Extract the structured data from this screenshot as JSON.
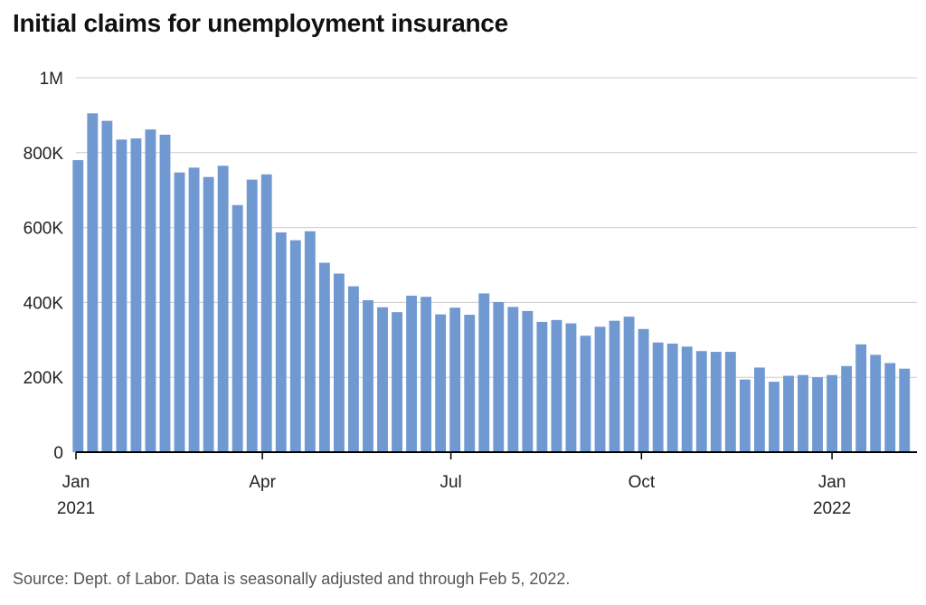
{
  "header": {
    "title": "Initial claims for unemployment insurance"
  },
  "footer": {
    "source": "Source: Dept. of Labor. Data is seasonally adjusted and through Feb 5, 2022."
  },
  "colors": {
    "bar": "#7199d1",
    "grid": "#cccccc",
    "axis": "#000000",
    "text": "#222222"
  },
  "chart_data": {
    "type": "bar",
    "title": "Initial claims for unemployment insurance",
    "xlabel": "",
    "ylabel": "",
    "ylim": [
      0,
      1000000
    ],
    "grid": true,
    "y_ticks": [
      {
        "value": 0,
        "label": "0"
      },
      {
        "value": 200000,
        "label": "200K"
      },
      {
        "value": 400000,
        "label": "400K"
      },
      {
        "value": 600000,
        "label": "600K"
      },
      {
        "value": 800000,
        "label": "800K"
      },
      {
        "value": 1000000,
        "label": "1M"
      }
    ],
    "x_ticks": [
      {
        "date": "2021-01-01",
        "label": "Jan",
        "sublabel": "2021"
      },
      {
        "date": "2021-04-01",
        "label": "Apr",
        "sublabel": ""
      },
      {
        "date": "2021-07-01",
        "label": "Jul",
        "sublabel": ""
      },
      {
        "date": "2021-10-01",
        "label": "Oct",
        "sublabel": ""
      },
      {
        "date": "2022-01-01",
        "label": "Jan",
        "sublabel": "2022"
      }
    ],
    "x_range": [
      "2021-01-01",
      "2022-02-11"
    ],
    "categories": [
      "2021-01-02",
      "2021-01-09",
      "2021-01-16",
      "2021-01-23",
      "2021-01-30",
      "2021-02-06",
      "2021-02-13",
      "2021-02-20",
      "2021-02-27",
      "2021-03-06",
      "2021-03-13",
      "2021-03-20",
      "2021-03-27",
      "2021-04-03",
      "2021-04-10",
      "2021-04-17",
      "2021-04-24",
      "2021-05-01",
      "2021-05-08",
      "2021-05-15",
      "2021-05-22",
      "2021-05-29",
      "2021-06-05",
      "2021-06-12",
      "2021-06-19",
      "2021-06-26",
      "2021-07-03",
      "2021-07-10",
      "2021-07-17",
      "2021-07-24",
      "2021-07-31",
      "2021-08-07",
      "2021-08-14",
      "2021-08-21",
      "2021-08-28",
      "2021-09-04",
      "2021-09-11",
      "2021-09-18",
      "2021-09-25",
      "2021-10-02",
      "2021-10-09",
      "2021-10-16",
      "2021-10-23",
      "2021-10-30",
      "2021-11-06",
      "2021-11-13",
      "2021-11-20",
      "2021-11-27",
      "2021-12-04",
      "2021-12-11",
      "2021-12-18",
      "2021-12-25",
      "2022-01-01",
      "2022-01-08",
      "2022-01-15",
      "2022-01-22",
      "2022-01-29",
      "2022-02-05"
    ],
    "values": [
      780000,
      905000,
      885000,
      835000,
      838000,
      862000,
      848000,
      747000,
      760000,
      735000,
      765000,
      660000,
      728000,
      742000,
      587000,
      566000,
      590000,
      506000,
      477000,
      443000,
      406000,
      387000,
      374000,
      418000,
      415000,
      368000,
      386000,
      367000,
      424000,
      401000,
      388000,
      377000,
      348000,
      353000,
      344000,
      311000,
      335000,
      351000,
      362000,
      329000,
      293000,
      290000,
      282000,
      270000,
      268000,
      268000,
      194000,
      226000,
      188000,
      204000,
      206000,
      200000,
      206000,
      230000,
      288000,
      260000,
      238000,
      223000
    ]
  }
}
